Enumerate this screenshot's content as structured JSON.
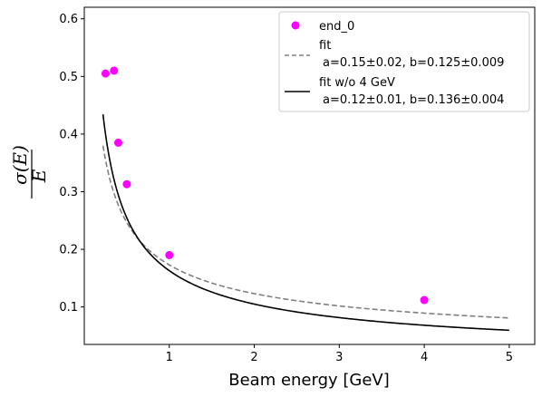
{
  "chart_data": {
    "type": "scatter",
    "title": "",
    "xlabel": "Beam energy [GeV]",
    "ylabel": {
      "numerator": "σ(E)",
      "denominator": "E"
    },
    "xlim": [
      0.0,
      5.3
    ],
    "ylim": [
      0.035,
      0.62
    ],
    "xticks": [
      1,
      2,
      3,
      4,
      5
    ],
    "yticks": [
      0.1,
      0.2,
      0.3,
      0.4,
      0.5,
      0.6
    ],
    "grid": false,
    "legend_position": "top-right",
    "series": [
      {
        "name": "end_0",
        "kind": "points",
        "color": "#ff00ff",
        "x": [
          0.25,
          0.35,
          0.5,
          0.4,
          1.0,
          4.0
        ],
        "y": [
          0.505,
          0.51,
          0.313,
          0.385,
          0.19,
          0.112
        ]
      },
      {
        "name": "fit",
        "param_line": "a=0.15±0.02,  b=0.125±0.009",
        "kind": "curve",
        "style": "dashed",
        "color": "#808080",
        "a": 0.15,
        "b": 0.125,
        "x_range": [
          0.22,
          5.0
        ]
      },
      {
        "name": "fit w/o 4 GeV",
        "param_line": "a=0.12±0.01,  b=0.136±0.004",
        "kind": "curve",
        "style": "solid",
        "color": "#000000",
        "a": 0.12,
        "b": 0.136,
        "x_range": [
          0.22,
          5.0
        ]
      }
    ]
  }
}
